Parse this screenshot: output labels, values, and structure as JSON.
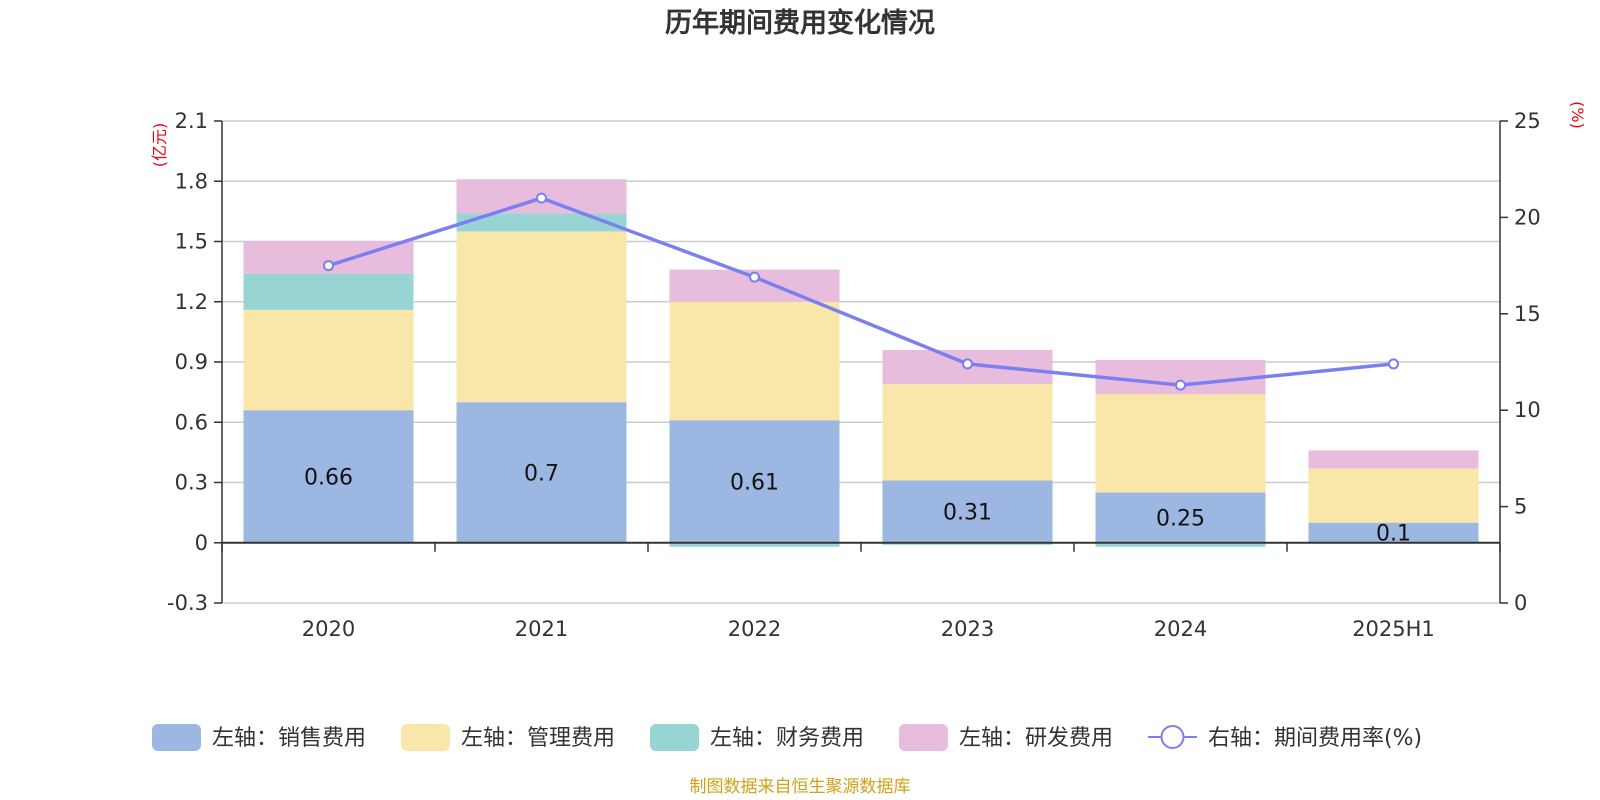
{
  "chart_data": {
    "type": "bar",
    "stacked": true,
    "title": "历年期间费用变化情况",
    "categories": [
      "2020",
      "2021",
      "2022",
      "2023",
      "2024",
      "2025H1"
    ],
    "left_axis": {
      "unit_label": "(亿元)",
      "range": [
        -0.3,
        2.1
      ],
      "ticks": [
        "-0.3",
        "0",
        "0.3",
        "0.6",
        "0.9",
        "1.2",
        "1.5",
        "1.8",
        "2.1"
      ],
      "tick_values": [
        -0.3,
        0,
        0.3,
        0.6,
        0.9,
        1.2,
        1.5,
        1.8,
        2.1
      ]
    },
    "right_axis": {
      "unit_label": "(%)",
      "range": [
        0,
        25
      ],
      "ticks": [
        "0",
        "5",
        "10",
        "15",
        "20",
        "25"
      ],
      "tick_values": [
        0,
        5,
        10,
        15,
        20,
        25
      ]
    },
    "series": [
      {
        "name": "左轴：销售费用",
        "color": "#9cb8e2",
        "values": [
          0.66,
          0.7,
          0.61,
          0.31,
          0.25,
          0.1
        ],
        "labels": [
          "0.66",
          "0.7",
          "0.61",
          "0.31",
          "0.25",
          "0.1"
        ]
      },
      {
        "name": "左轴：管理费用",
        "color": "#f8e7a8",
        "values": [
          0.5,
          0.85,
          0.59,
          0.48,
          0.49,
          0.27
        ]
      },
      {
        "name": "左轴：财务费用",
        "color": "#98d4d4",
        "values": [
          0.18,
          0.09,
          -0.02,
          -0.01,
          -0.02,
          0.0
        ]
      },
      {
        "name": "左轴：研发费用",
        "color": "#e7bcdc",
        "values": [
          0.16,
          0.17,
          0.16,
          0.17,
          0.17,
          0.09
        ]
      }
    ],
    "line_series": {
      "name": "右轴：期间费用率(%)",
      "color": "#7b7ff0",
      "axis": "right",
      "values": [
        17.5,
        21.0,
        16.9,
        12.4,
        11.3,
        12.4
      ]
    },
    "grid": true,
    "legend_position": "bottom"
  },
  "source_note": "制图数据来自恒生聚源数据库"
}
